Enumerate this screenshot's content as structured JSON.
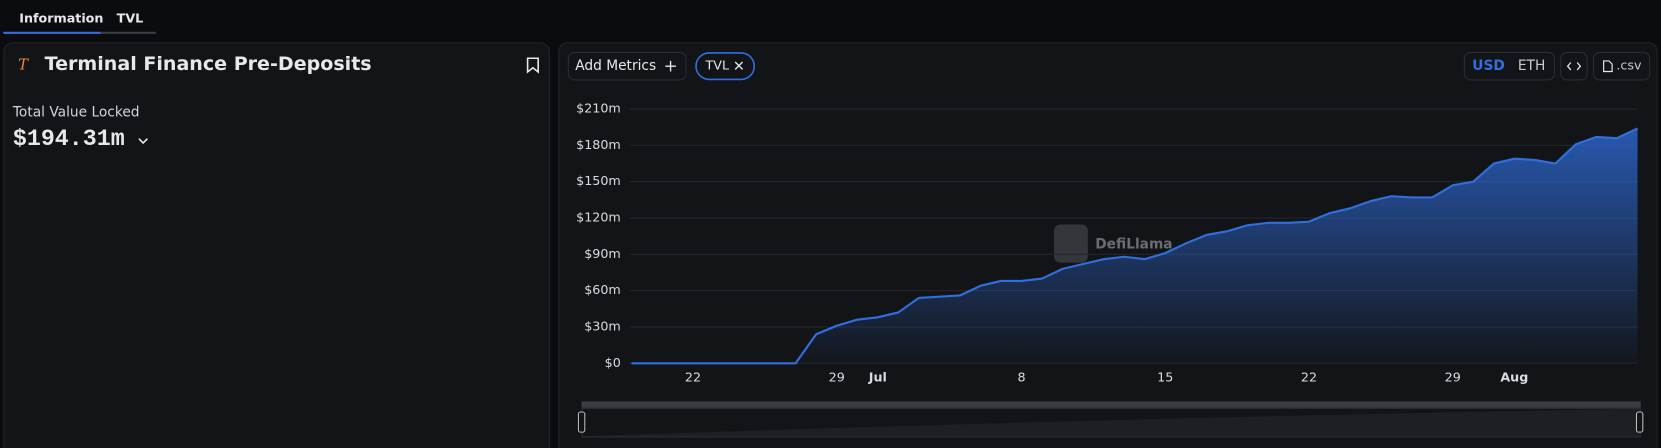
{
  "ui": {
    "tabs": [
      "Information",
      "TVL"
    ],
    "title": "Terminal Finance Pre-Deposits",
    "metric_label": "Total Value Locked",
    "metric_value": "$194.31m",
    "add_metrics": "Add Metrics",
    "currencies": [
      "USD",
      "ETH"
    ],
    "csv": ".csv",
    "watermark": "DefiLlama"
  },
  "chart_data": {
    "type": "area",
    "categories": [
      null,
      null,
      null,
      "22",
      null,
      null,
      null,
      null,
      null,
      null,
      "29",
      null,
      "Jul",
      null,
      null,
      null,
      null,
      null,
      null,
      "8",
      null,
      null,
      null,
      null,
      null,
      null,
      "15",
      null,
      null,
      null,
      null,
      null,
      null,
      "22",
      null,
      null,
      null,
      null,
      null,
      null,
      "29",
      null,
      null,
      "Aug",
      null,
      null,
      null,
      null,
      null,
      null
    ],
    "series": [
      {
        "name": "TVL",
        "color": "#2f6fe0",
        "values": [
          0,
          0,
          0,
          0,
          0,
          0,
          0,
          0,
          0,
          24,
          31,
          36,
          38,
          42,
          54,
          55,
          56,
          64,
          68,
          68,
          70,
          78,
          82,
          86,
          88,
          86,
          91,
          99,
          106,
          109,
          114,
          116,
          116,
          117,
          124,
          128,
          134,
          138,
          137,
          137,
          147,
          150,
          165,
          169,
          168,
          165,
          181,
          187,
          186,
          194
        ]
      }
    ],
    "ylim": [
      0,
      210
    ],
    "yticks": [
      {
        "value": 0,
        "label": "$0"
      },
      {
        "value": 30,
        "label": "$30m"
      },
      {
        "value": 60,
        "label": "$60m"
      },
      {
        "value": 90,
        "label": "$90m"
      },
      {
        "value": 120,
        "label": "$120m"
      },
      {
        "value": 150,
        "label": "$150m"
      },
      {
        "value": 180,
        "label": "$180m"
      },
      {
        "value": 210,
        "label": "$210m"
      }
    ],
    "grid": true
  }
}
